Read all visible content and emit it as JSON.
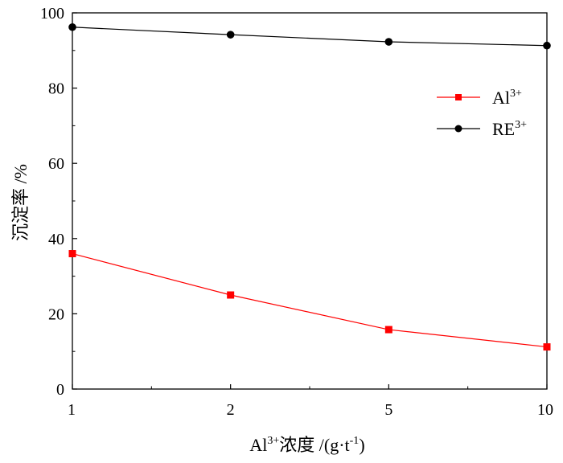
{
  "chart_data": {
    "type": "line",
    "x_scale": "categorical",
    "categories": [
      "1",
      "2",
      "5",
      "10"
    ],
    "series": [
      {
        "name": "Al",
        "name_sup": "3+",
        "color": "#ff0000",
        "marker": "square",
        "values": [
          36.0,
          25.0,
          15.8,
          11.2
        ]
      },
      {
        "name": "RE",
        "name_sup": "3+",
        "color": "#000000",
        "marker": "circle",
        "values": [
          96.2,
          94.2,
          92.3,
          91.3
        ]
      }
    ],
    "ylim": [
      0,
      100
    ],
    "yticks": [
      "0",
      "20",
      "40",
      "60",
      "80",
      "100"
    ],
    "ylabel": "沉淀率 /%",
    "xlabel": {
      "prefix": "Al",
      "prefix_sup": "3+",
      "middle": "浓度 /(g·t",
      "unit_sup": "-1",
      "suffix": ")"
    },
    "legend_position": "top-right",
    "grid": false
  }
}
